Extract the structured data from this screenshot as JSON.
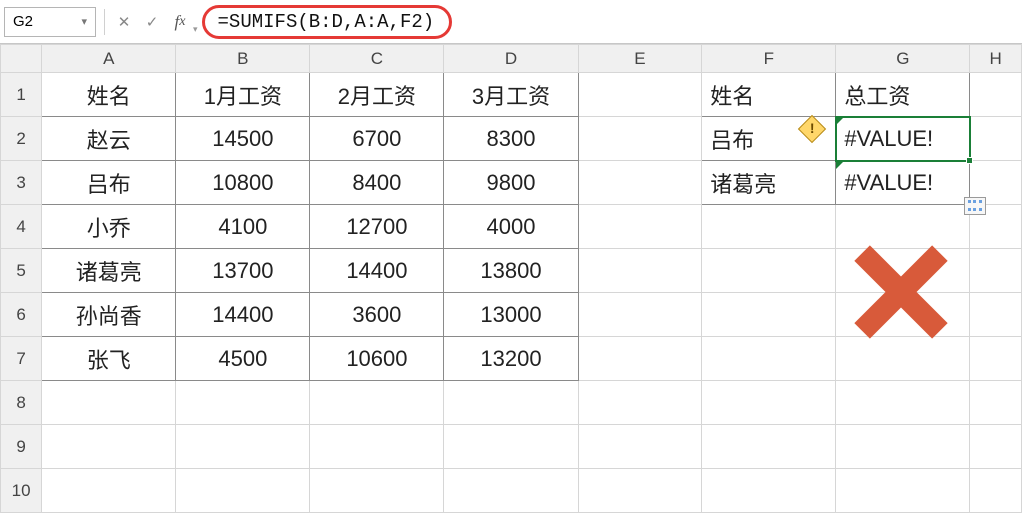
{
  "formula_bar": {
    "cell_ref": "G2",
    "formula": "=SUMIFS(B:D,A:A,F2)",
    "highlight_color": "#e53935"
  },
  "columns": [
    "A",
    "B",
    "C",
    "D",
    "E",
    "F",
    "G",
    "H"
  ],
  "rows_visible": 10,
  "tableA": {
    "range": "A1:D7",
    "headers": [
      "姓名",
      "1月工资",
      "2月工资",
      "3月工资"
    ],
    "rows": [
      [
        "赵云",
        14500,
        6700,
        8300
      ],
      [
        "吕布",
        10800,
        8400,
        9800
      ],
      [
        "小乔",
        4100,
        12700,
        4000
      ],
      [
        "诸葛亮",
        13700,
        14400,
        13800
      ],
      [
        "孙尚香",
        14400,
        3600,
        13000
      ],
      [
        "张飞",
        4500,
        10600,
        13200
      ]
    ],
    "border_color": "#8a8a8a",
    "font_size": 22
  },
  "lookup": {
    "range": "F1:G3",
    "headers": [
      "姓名",
      "总工资"
    ],
    "rows": [
      [
        "吕布",
        "#VALUE!"
      ],
      [
        "诸葛亮",
        "#VALUE!"
      ]
    ],
    "border_color": "#8a8a8a",
    "error_triangle_color": "#1a7f37",
    "warning_cell": "F2"
  },
  "selection": {
    "cell": "G2",
    "outline_color": "#1a7f37"
  },
  "overlay": {
    "big_x": {
      "color": "#d85a3a",
      "approx_cell": "G5"
    },
    "options_box_cell": "H4"
  },
  "colors": {
    "grid_line": "#d6d6d6",
    "header_bg": "#f0f0f0",
    "background": "#ffffff"
  }
}
